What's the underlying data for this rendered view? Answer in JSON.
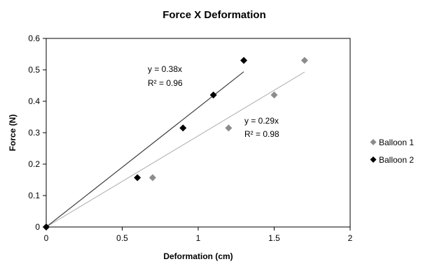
{
  "chart_data": {
    "type": "scatter",
    "title": "Force X Deformation",
    "xlabel": "Deformation (cm)",
    "ylabel": "Force (N)",
    "xlim": [
      0,
      2
    ],
    "ylim": [
      0,
      0.6
    ],
    "xticks": [
      "0",
      "0.5",
      "1",
      "1.5",
      "2"
    ],
    "yticks": [
      "0",
      "0.1",
      "0.2",
      "0.3",
      "0.4",
      "0.5",
      "0.6"
    ],
    "grid": false,
    "legend_position": "right",
    "series": [
      {
        "name": "Balloon 1",
        "marker": "diamond",
        "color": "#8c8c8c",
        "x": [
          0,
          0.7,
          1.2,
          1.5,
          1.7
        ],
        "y": [
          0,
          0.157,
          0.315,
          0.42,
          0.53
        ],
        "trendline": {
          "slope": 0.29,
          "x_end": 1.7,
          "color": "#b8b8b8",
          "equation": "y = 0.29x",
          "r2": "R² = 0.98"
        }
      },
      {
        "name": "Balloon 2",
        "marker": "diamond",
        "color": "#000000",
        "x": [
          0,
          0.6,
          0.9,
          1.1,
          1.3
        ],
        "y": [
          0,
          0.157,
          0.315,
          0.42,
          0.53
        ],
        "trendline": {
          "slope": 0.38,
          "x_end": 1.3,
          "color": "#404040",
          "equation": "y = 0.38x",
          "r2": "R² = 0.96"
        }
      }
    ]
  }
}
